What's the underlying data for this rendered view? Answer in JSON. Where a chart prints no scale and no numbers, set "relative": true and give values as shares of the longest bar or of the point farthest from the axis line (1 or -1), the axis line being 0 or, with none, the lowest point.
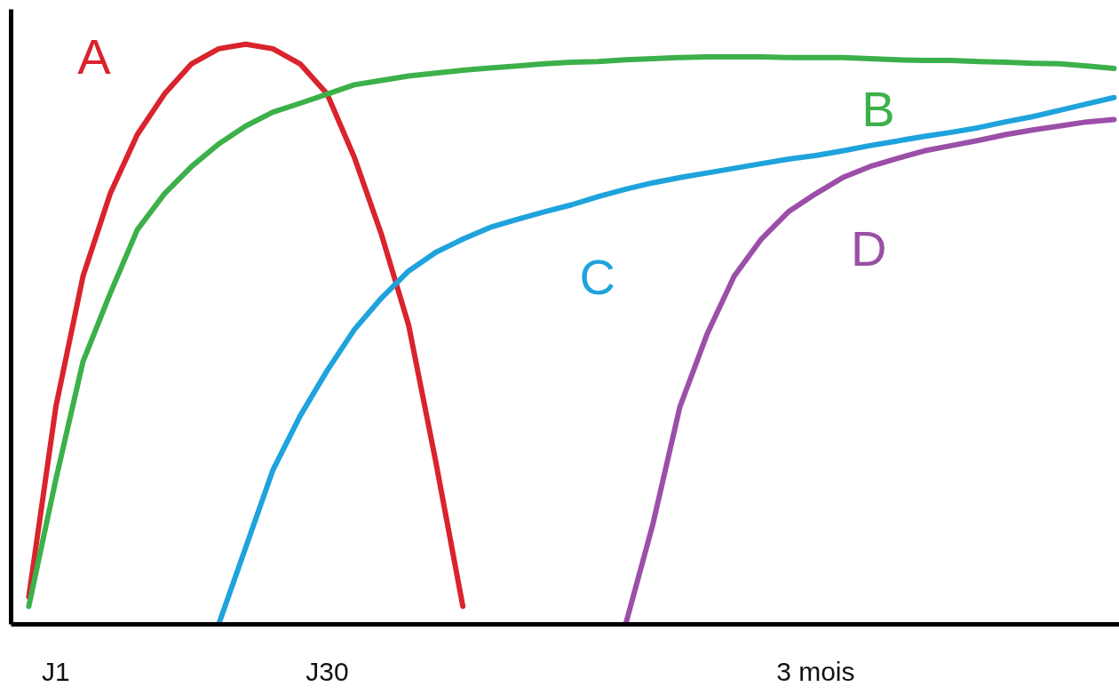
{
  "chart_data": {
    "type": "line",
    "relative": true,
    "tick_labels": "x",
    "grid": false,
    "marker": "none",
    "line_style": "solid",
    "categories": [
      null,
      "J1",
      null,
      null,
      null,
      null,
      null,
      null,
      null,
      null,
      null,
      "J30",
      null,
      null,
      null,
      null,
      null,
      null,
      null,
      null,
      null,
      null,
      null,
      null,
      null,
      null,
      null,
      null,
      null,
      "3 mois",
      null,
      null,
      null,
      null,
      null,
      null,
      null,
      null,
      null,
      null,
      null
    ],
    "series": [
      {
        "name": "A",
        "color": "#d9232d",
        "values": [
          0.047,
          0.375,
          0.6,
          0.742,
          0.844,
          0.914,
          0.966,
          0.992,
          1,
          0.992,
          0.966,
          0.914,
          0.805,
          0.672,
          0.516,
          0.281,
          0.031,
          null,
          null,
          null,
          null,
          null,
          null,
          null,
          null,
          null,
          null,
          null,
          null,
          null,
          null,
          null,
          null,
          null,
          null,
          null,
          null,
          null,
          null,
          null,
          null
        ]
      },
      {
        "name": "B",
        "color": "#3cb04a",
        "values": [
          0.031,
          0.25,
          0.453,
          0.57,
          0.68,
          0.742,
          0.789,
          0.828,
          0.859,
          0.883,
          0.898,
          0.914,
          0.93,
          0.9375,
          0.945,
          0.95,
          0.955,
          0.959,
          0.9625,
          0.966,
          0.969,
          0.97,
          0.973,
          0.975,
          0.977,
          0.978,
          0.978,
          0.978,
          0.977,
          0.977,
          0.977,
          0.975,
          0.973,
          0.972,
          0.972,
          0.97,
          0.969,
          0.967,
          0.966,
          0.9625,
          0.958
        ]
      },
      {
        "name": "C",
        "color": "#1fa3dc",
        "values": [
          null,
          null,
          null,
          null,
          null,
          null,
          null,
          0,
          0.133,
          0.266,
          0.359,
          0.4375,
          0.508,
          0.5625,
          0.609,
          0.641,
          0.664,
          0.684,
          0.698,
          0.711,
          0.723,
          0.7375,
          0.75,
          0.761,
          0.77,
          0.778,
          0.786,
          0.794,
          0.802,
          0.808,
          0.816,
          0.825,
          0.833,
          0.841,
          0.848,
          0.856,
          0.866,
          0.875,
          0.886,
          0.897,
          0.908
        ]
      },
      {
        "name": "D",
        "color": "#9b4fa8",
        "values": [
          null,
          null,
          null,
          null,
          null,
          null,
          null,
          null,
          null,
          null,
          null,
          null,
          null,
          null,
          null,
          null,
          null,
          null,
          null,
          null,
          null,
          null,
          0,
          0.172,
          0.375,
          0.5,
          0.6,
          0.664,
          0.711,
          0.742,
          0.77,
          0.789,
          0.803,
          0.816,
          0.825,
          0.834,
          0.844,
          0.852,
          0.859,
          0.866,
          0.87
        ]
      }
    ]
  }
}
